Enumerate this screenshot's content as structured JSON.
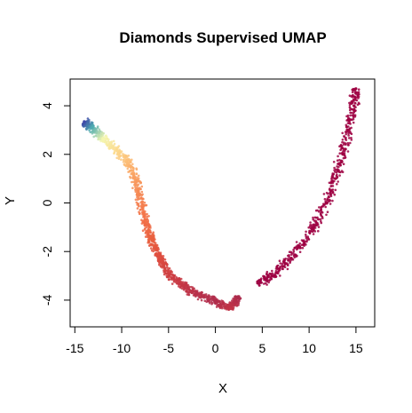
{
  "chart_data": {
    "type": "scatter",
    "title": "Diamonds Supervised UMAP",
    "xlabel": "X",
    "ylabel": "Y",
    "xlim": [
      -15.5,
      17
    ],
    "ylim": [
      -5.1,
      5.1
    ],
    "x_ticks": [
      -15,
      -10,
      -5,
      0,
      5,
      10,
      15
    ],
    "y_ticks": [
      -4,
      -2,
      0,
      2,
      4
    ],
    "x_tick_labels": [
      "-15",
      "-10",
      "-5",
      "0",
      "5",
      "10",
      "15"
    ],
    "y_tick_labels": [
      "-4",
      "-2",
      "0",
      "2",
      "4"
    ],
    "grid": false,
    "legend": "none",
    "color_scale": "Spectral",
    "clusters": [
      {
        "shape": "curved band",
        "x": [
          -14,
          -13.2,
          -12,
          -10.5,
          -9,
          -8.2,
          -7.5,
          -6.8,
          -6,
          -5,
          -3.5,
          -2,
          0,
          1.6,
          2.5
        ],
        "y": [
          3.35,
          3.1,
          2.65,
          2.15,
          1.5,
          0.5,
          -0.7,
          -1.5,
          -2.2,
          -2.9,
          -3.4,
          -3.75,
          -4.05,
          -4.35,
          -3.85
        ],
        "color": [
          "#3f4aa8",
          "#4dabb0",
          "#f3f6b0",
          "#fcd98d",
          "#fbb16c",
          "#f68b55",
          "#f26f47",
          "#e9603f",
          "#de4d3f",
          "#cf3f41",
          "#c43645",
          "#b8304a",
          "#b02d4b",
          "#c23447",
          "#ab2a4c"
        ]
      },
      {
        "shape": "arc",
        "x": [
          4.5,
          6,
          7.5,
          9,
          10.5,
          11.8,
          12.8,
          13.6,
          14.2,
          14.8,
          15
        ],
        "y": [
          -3.3,
          -3.0,
          -2.5,
          -1.8,
          -1.0,
          0.0,
          1.0,
          2.0,
          3.0,
          4.0,
          4.7
        ],
        "color": [
          "#9e0142",
          "#9e0142",
          "#9e0142",
          "#9e0142",
          "#9e0142",
          "#9e0142",
          "#9e0142",
          "#9e0142",
          "#9e0142",
          "#9e0142",
          "#9e0142"
        ]
      }
    ]
  }
}
